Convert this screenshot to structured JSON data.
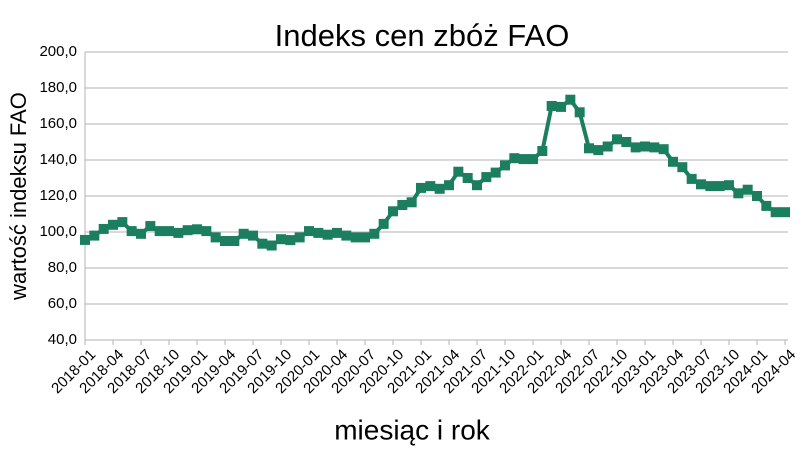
{
  "chart_data": {
    "type": "line",
    "title": "Indeks cen zbóż FAO",
    "xlabel": "miesiąc i rok",
    "ylabel": "wartość indeksu FAO",
    "categories": [
      "2018-01",
      null,
      null,
      "2018-04",
      null,
      null,
      "2018-07",
      null,
      null,
      "2018-10",
      null,
      null,
      "2019-01",
      null,
      null,
      "2019-04",
      null,
      null,
      "2019-07",
      null,
      null,
      "2019-10",
      null,
      null,
      "2020-01",
      null,
      null,
      "2020-04",
      null,
      null,
      "2020-07",
      null,
      null,
      "2020-10",
      null,
      null,
      "2021-01",
      null,
      null,
      "2021-04",
      null,
      null,
      "2021-07",
      null,
      null,
      "2021-10",
      null,
      null,
      "2022-01",
      null,
      null,
      "2022-04",
      null,
      null,
      "2022-07",
      null,
      null,
      "2022-10",
      null,
      null,
      "2023-01",
      null,
      null,
      "2023-04",
      null,
      null,
      "2023-07",
      null,
      null,
      "2023-10",
      null,
      null,
      "2024-01",
      null,
      null,
      "2024-04"
    ],
    "values": [
      95.6,
      98,
      101.7,
      104,
      105.5,
      100.5,
      99,
      103.3,
      100.5,
      100.5,
      99.5,
      101,
      101.5,
      100.5,
      97,
      95,
      95,
      99,
      98,
      93.5,
      92.5,
      96,
      95.5,
      97,
      100.5,
      99.5,
      98.5,
      99.5,
      98,
      97,
      97,
      99,
      104.5,
      111.5,
      115,
      116.5,
      124.5,
      125.5,
      124,
      126,
      133.5,
      130,
      126,
      130.5,
      133,
      137,
      141,
      140.5,
      140.5,
      145,
      170,
      169.5,
      173.5,
      166.5,
      146.5,
      145.5,
      147.5,
      151.5,
      150,
      147,
      147.5,
      147,
      146,
      139,
      136,
      129.5,
      126.5,
      125.5,
      125.5,
      126,
      121.5,
      123.5,
      120,
      114.5,
      111,
      111
    ],
    "color": "#1b7f5f",
    "ylim": [
      40,
      200
    ],
    "yticks": [
      {
        "value": 40,
        "label": "40,0"
      },
      {
        "value": 60,
        "label": "60,0"
      },
      {
        "value": 80,
        "label": "80,0"
      },
      {
        "value": 100,
        "label": "100,0"
      },
      {
        "value": 120,
        "label": "120,0"
      },
      {
        "value": 140,
        "label": "140,0"
      },
      {
        "value": 160,
        "label": "160,0"
      },
      {
        "value": 180,
        "label": "180,0"
      },
      {
        "value": 200,
        "label": "200,0"
      }
    ],
    "grid": true
  }
}
